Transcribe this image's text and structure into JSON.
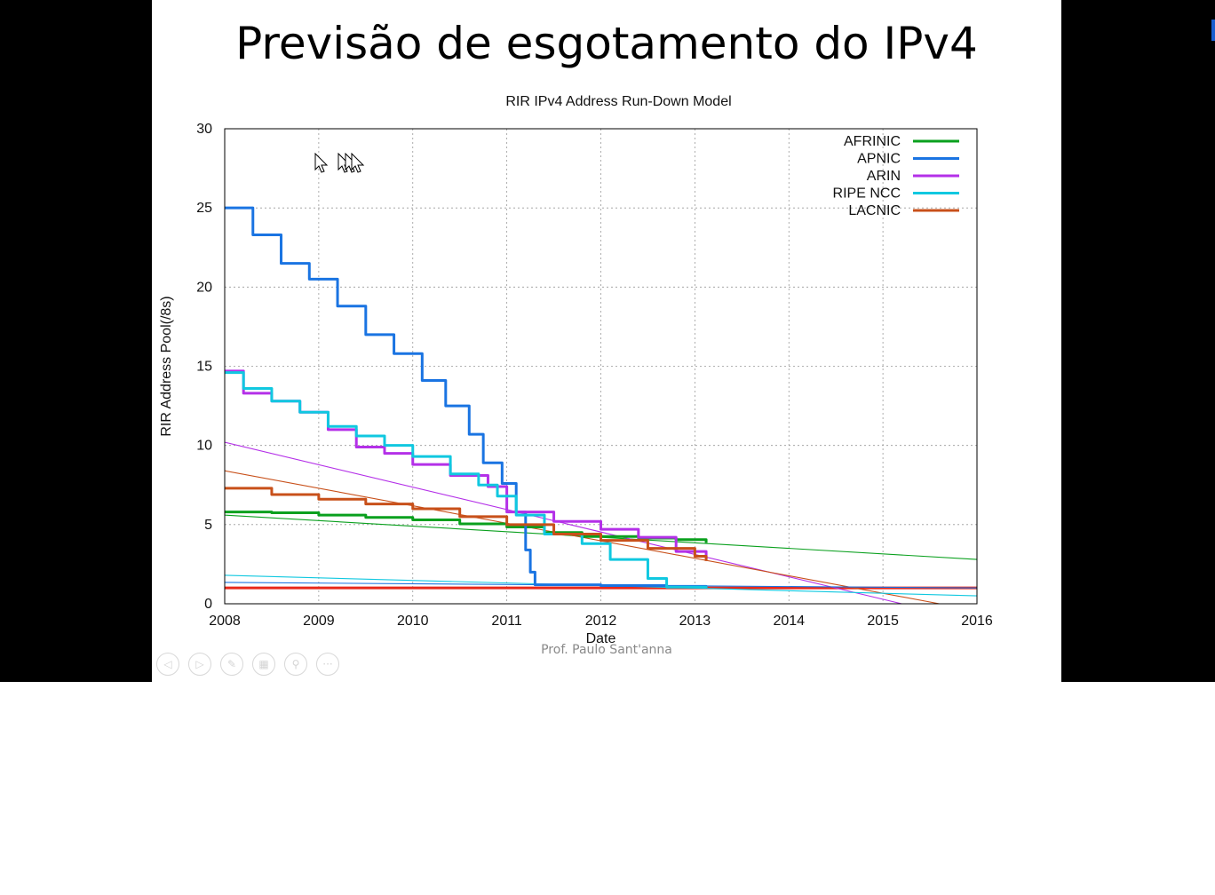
{
  "slide": {
    "title": "Previsão de esgotamento do IPv4",
    "footer": "Prof. Paulo Sant'anna"
  },
  "controls": [
    {
      "name": "previous-slide-button",
      "icon": "◁"
    },
    {
      "name": "next-slide-button",
      "icon": "▷"
    },
    {
      "name": "pen-tool-button",
      "icon": "✎"
    },
    {
      "name": "slides-grid-button",
      "icon": "▦"
    },
    {
      "name": "zoom-button",
      "icon": "⚲"
    },
    {
      "name": "more-options-button",
      "icon": "···"
    }
  ],
  "chart_data": {
    "type": "line",
    "title": "RIR IPv4 Address Run-Down Model",
    "xlabel": "Date",
    "ylabel": "RIR Address Pool(/8s)",
    "xlim": [
      2008,
      2016
    ],
    "ylim": [
      0,
      30
    ],
    "xticks": [
      "2008",
      "2009",
      "2010",
      "2011",
      "2012",
      "2013",
      "2014",
      "2015",
      "2016"
    ],
    "yticks": [
      "0",
      "5",
      "10",
      "15",
      "20",
      "25",
      "30"
    ],
    "grid": true,
    "legend_position": "top-right",
    "series": [
      {
        "name": "AFRINIC",
        "color": "#0aa01e",
        "x": [
          2008,
          2008.5,
          2009,
          2009.5,
          2010,
          2010.5,
          2011,
          2011.4,
          2011.8,
          2012.4,
          2012.8,
          2013.12
        ],
        "y": [
          5.8,
          5.75,
          5.6,
          5.45,
          5.3,
          5.05,
          4.85,
          4.5,
          4.25,
          4.15,
          4.05,
          3.85
        ]
      },
      {
        "name": "APNIC",
        "color": "#1a74e2",
        "x": [
          2008,
          2008.3,
          2008.6,
          2008.9,
          2009.2,
          2009.5,
          2009.8,
          2010.1,
          2010.35,
          2010.6,
          2010.75,
          2010.95,
          2011.1,
          2011.2,
          2011.25,
          2011.3,
          2012,
          2012.7,
          2013.12
        ],
        "y": [
          25,
          23.3,
          21.5,
          20.5,
          18.8,
          17,
          15.8,
          14.1,
          12.5,
          10.7,
          8.9,
          7.6,
          5.8,
          3.4,
          2,
          1.2,
          1.15,
          1.1,
          1.05
        ]
      },
      {
        "name": "ARIN",
        "color": "#b430e8",
        "x": [
          2008,
          2008.2,
          2008.5,
          2008.8,
          2009.1,
          2009.4,
          2009.7,
          2010,
          2010.4,
          2010.8,
          2011,
          2011.5,
          2012,
          2012.4,
          2012.8,
          2013.12
        ],
        "y": [
          14.7,
          13.3,
          12.8,
          12.1,
          11,
          9.9,
          9.5,
          8.8,
          8.1,
          7.4,
          5.8,
          5.2,
          4.7,
          4.2,
          3.3,
          2.8
        ]
      },
      {
        "name": "RIPE NCC",
        "color": "#10c8e0",
        "x": [
          2008,
          2008.2,
          2008.5,
          2008.8,
          2009.1,
          2009.4,
          2009.7,
          2010,
          2010.4,
          2010.7,
          2010.9,
          2011.1,
          2011.4,
          2011.8,
          2012.1,
          2012.5,
          2012.7,
          2013.12
        ],
        "y": [
          14.6,
          13.6,
          12.8,
          12.1,
          11.2,
          10.6,
          10,
          9.3,
          8.2,
          7.5,
          6.8,
          5.6,
          4.4,
          3.8,
          2.8,
          1.6,
          1.05,
          1
        ]
      },
      {
        "name": "LACNIC",
        "color": "#c8501a",
        "x": [
          2008,
          2008.5,
          2009,
          2009.5,
          2010,
          2010.5,
          2011,
          2011.5,
          2012,
          2012.5,
          2013,
          2013.12
        ],
        "y": [
          7.3,
          6.9,
          6.6,
          6.3,
          6.0,
          5.5,
          5.0,
          4.4,
          4.0,
          3.5,
          3.0,
          2.7
        ]
      }
    ],
    "trend_lines": [
      {
        "color": "#0aa01e",
        "x": [
          2008,
          2016
        ],
        "y": [
          5.6,
          2.8
        ]
      },
      {
        "color": "#b430e8",
        "x": [
          2008,
          2015.2
        ],
        "y": [
          10.2,
          0
        ]
      },
      {
        "color": "#c8501a",
        "x": [
          2008,
          2015.6
        ],
        "y": [
          8.4,
          0
        ]
      },
      {
        "color": "#10c8e0",
        "x": [
          2008,
          2016
        ],
        "y": [
          1.8,
          0.5
        ]
      },
      {
        "color": "#1a74e2",
        "x": [
          2008,
          2016
        ],
        "y": [
          1.35,
          1.0
        ]
      }
    ],
    "threshold": {
      "color": "#e8281a",
      "value": 1.0
    }
  }
}
